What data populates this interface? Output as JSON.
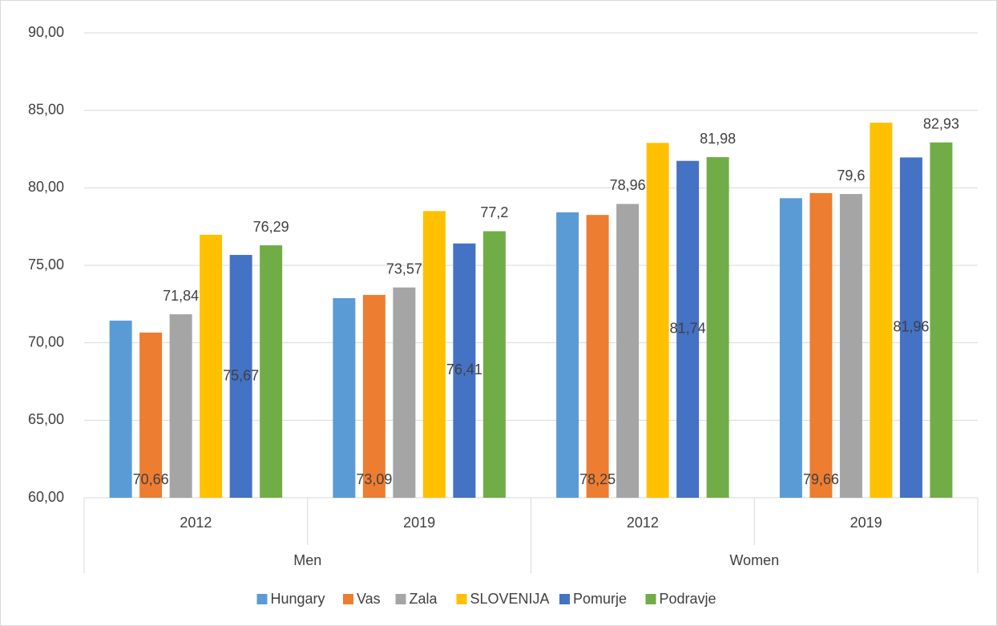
{
  "chart_data": {
    "type": "bar",
    "categories": [
      "2012",
      "2019",
      "2012",
      "2019"
    ],
    "groups": [
      "Men",
      "Women"
    ],
    "ylim": [
      60,
      90
    ],
    "yticks": [
      {
        "value": 60,
        "label": "60,00"
      },
      {
        "value": 65,
        "label": "65,00"
      },
      {
        "value": 70,
        "label": "70,00"
      },
      {
        "value": 75,
        "label": "75,00"
      },
      {
        "value": 80,
        "label": "80,00"
      },
      {
        "value": 85,
        "label": "85,00"
      },
      {
        "value": 90,
        "label": "90,00"
      }
    ],
    "grid": true,
    "legend": "bottom",
    "series": [
      {
        "name": "Hungary",
        "color": "#5b9bd5",
        "values": [
          71.43,
          72.88,
          78.42,
          79.33
        ]
      },
      {
        "name": "Vas",
        "color": "#ed7d31",
        "values": [
          70.66,
          73.09,
          78.25,
          79.66
        ],
        "value_labels": [
          "70,66",
          "73,09",
          "78,25",
          "79,66"
        ],
        "label_position": "inside_base"
      },
      {
        "name": "Zala",
        "color": "#a5a5a5",
        "values": [
          71.84,
          73.57,
          78.96,
          79.6
        ],
        "value_labels": [
          "71,84",
          "73,57",
          "78,96",
          "79,6"
        ],
        "label_position": "outside_end"
      },
      {
        "name": "SLOVENIJA",
        "color": "#ffc000",
        "values": [
          76.97,
          78.5,
          82.9,
          84.2
        ]
      },
      {
        "name": "Pomurje",
        "color": "#4472c4",
        "values": [
          75.67,
          76.41,
          81.74,
          81.96
        ],
        "value_labels": [
          "75,67",
          "76,41",
          "81,74",
          "81,96"
        ],
        "label_position": "center"
      },
      {
        "name": "Podravje",
        "color": "#70ad47",
        "values": [
          76.29,
          77.2,
          81.98,
          82.93
        ],
        "value_labels": [
          "76,29",
          "77,2",
          "81,98",
          "82,93"
        ],
        "label_position": "outside_end"
      }
    ]
  }
}
